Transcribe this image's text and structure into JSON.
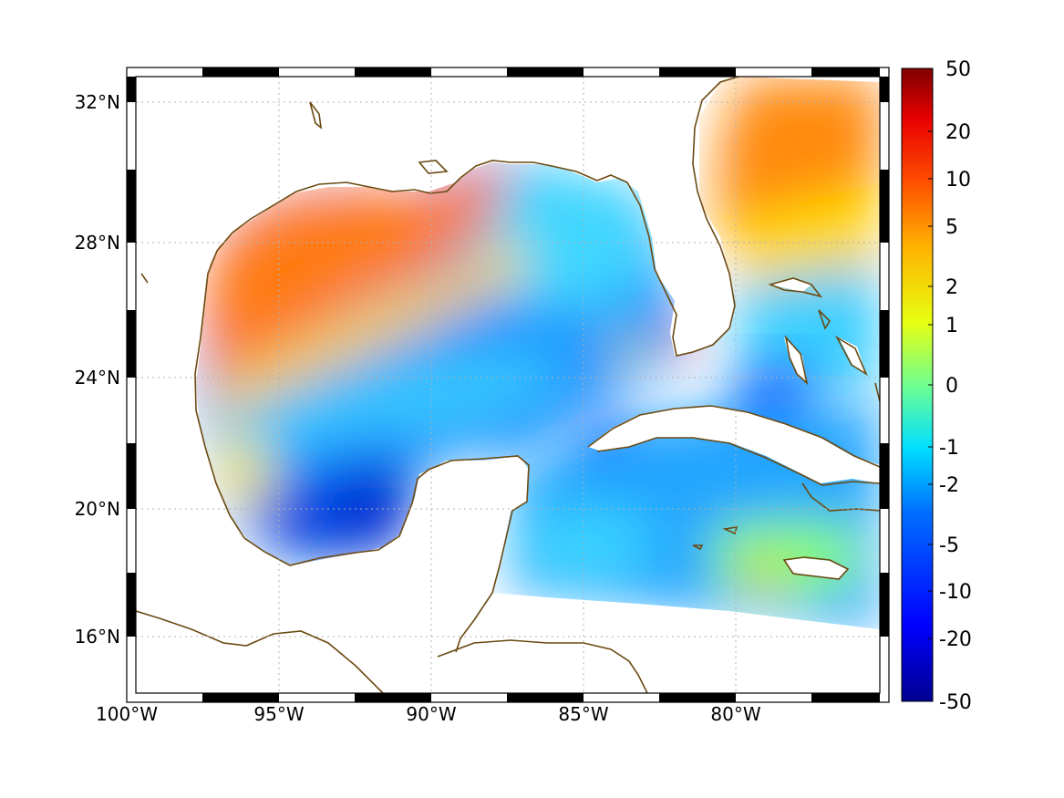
{
  "map": {
    "lon_labels": [
      "100°W",
      "95°W",
      "90°W",
      "85°W",
      "80°W"
    ],
    "lat_labels": [
      "32°N",
      "28°N",
      "24°N",
      "20°N",
      "16°N"
    ],
    "lon_range": [
      -100,
      -75
    ],
    "lat_range": [
      14.5,
      33
    ],
    "grid": "dotted",
    "coast_color": "#6b4a12"
  },
  "colorbar": {
    "labels": [
      "50",
      "20",
      "10",
      "5",
      "2",
      "1",
      "0",
      "-1",
      "-2",
      "-5",
      "-10",
      "-20",
      "-50"
    ],
    "range": [
      -50,
      50
    ],
    "colormap": "jet"
  },
  "field": {
    "description_free": true,
    "max_region": "western Gulf and Atlantic east of Florida (~5)",
    "min_region": "Bay of Campeche (~-10)"
  }
}
